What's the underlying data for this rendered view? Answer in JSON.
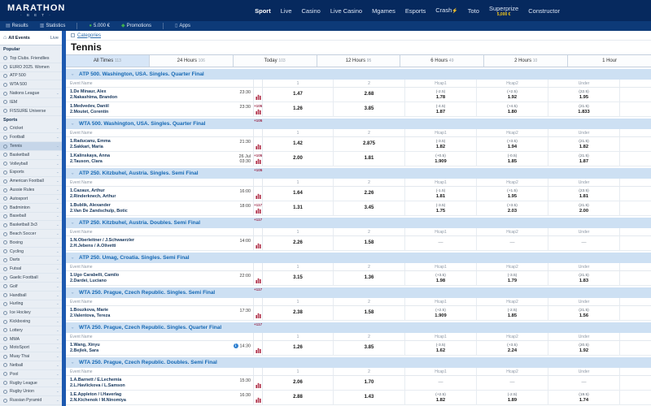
{
  "colors": {
    "navy": "#06295e",
    "navy2": "#0d3a78",
    "gold": "#f0c419",
    "divider": "#1d59b0",
    "section_header_bg": "#cde0f3",
    "section_header_text": "#1568b4",
    "markets_count": "#9c2f4e",
    "info_icon": "#2f80d0",
    "chart_icon": "#b03048"
  },
  "header": {
    "logo": {
      "line1": "MARATHON",
      "line2": "· B E T ·"
    },
    "nav": [
      {
        "label": "Sport",
        "active": true
      },
      {
        "label": "Live"
      },
      {
        "label": "Casino"
      },
      {
        "label": "Live Casino"
      },
      {
        "label": "Mgames"
      },
      {
        "label": "Esports"
      },
      {
        "label": "Crash",
        "flash": true
      },
      {
        "label": "Toto"
      },
      {
        "label": "Superprize",
        "sub": "5,000 €"
      },
      {
        "label": "Constructor"
      }
    ]
  },
  "subheader": {
    "items": [
      {
        "label": "Results",
        "icon": "results-icon",
        "glyph": "▤",
        "green": false,
        "sep_after": false
      },
      {
        "label": "Statistics",
        "icon": "statistics-icon",
        "glyph": "▥",
        "green": false,
        "sep_after": true
      },
      {
        "label": "5.000 €",
        "icon": "balance-icon",
        "glyph": "●",
        "green": true,
        "sep_after": false
      },
      {
        "label": "Promotions",
        "icon": "promotions-gift-icon",
        "glyph": "◆",
        "green": true,
        "sep_after": true
      },
      {
        "label": "Apps",
        "icon": "apps-phone-icon",
        "glyph": "▯",
        "green": false,
        "sep_after": false
      }
    ]
  },
  "sidebar": {
    "tabs": {
      "all_events": "All Events",
      "live": "Live"
    },
    "popular_title": "Popular",
    "popular": [
      {
        "label": "Top Clubs. Friendlies",
        "chevron": false
      },
      {
        "label": "EURO 2025. Women",
        "chevron": false
      },
      {
        "label": "ATP 500",
        "chevron": false
      },
      {
        "label": "WTA 500",
        "chevron": false
      },
      {
        "label": "Nations League",
        "chevron": true
      },
      {
        "label": "IEM",
        "chevron": false
      },
      {
        "label": "FISSURE Universe",
        "chevron": false
      }
    ],
    "sports_title": "Sports",
    "sports": [
      "Cricket",
      "Football",
      "Tennis",
      "Basketball",
      "Volleyball",
      "Esports",
      "American Football",
      "Aussie Rules",
      "Autosport",
      "Badminton",
      "Baseball",
      "Basketball 3x3",
      "Beach Soccer",
      "Boxing",
      "Cycling",
      "Darts",
      "Futsal",
      "Gaelic Football",
      "Golf",
      "Handball",
      "Hurling",
      "Ice Hockey",
      "Kickboxing",
      "Lottery",
      "MMA",
      "MotoSport",
      "Muay Thai",
      "Netball",
      "Pool",
      "Rugby League",
      "Rugby Union",
      "Russian Pyramid"
    ],
    "selected_sport": "Tennis"
  },
  "main": {
    "categories_label": "Categories",
    "title": "Tennis",
    "time_tabs": [
      {
        "label": "All Times",
        "count": "113",
        "active": true
      },
      {
        "label": "24 Hours",
        "count": "106",
        "active": false
      },
      {
        "label": "Today",
        "count": "103",
        "active": false
      },
      {
        "label": "12 Hours",
        "count": "95",
        "active": false
      },
      {
        "label": "6 Hours",
        "count": "49",
        "active": false
      },
      {
        "label": "2 Hours",
        "count": "10",
        "active": false
      },
      {
        "label": "1 Hour",
        "count": "",
        "active": false
      }
    ],
    "columns": {
      "event": "Event Name",
      "c1": "1",
      "c2": "2",
      "h1": "Hcap1",
      "h2": "Hcap2",
      "under": "Under"
    },
    "sections": [
      {
        "title": "ATP 500. Washington, USA. Singles. Quarter Final",
        "rows": [
          {
            "p1": "1.De Minaur, Alex",
            "p2": "2.Nakashima, Brandon",
            "date": "",
            "time": "23:30",
            "info": false,
            "markets": "+105",
            "o1": "1.47",
            "o2": "2.68",
            "h1p": "(-2.5)",
            "h1": "1.78",
            "h2p": "(+2.5)",
            "h2": "1.92",
            "up": "(22.5)",
            "u": "1.95"
          },
          {
            "p1": "1.Medvedev, Daniil",
            "p2": "2.Moutet, Corentin",
            "date": "",
            "time": "23:30",
            "info": false,
            "markets": "+105",
            "o1": "1.26",
            "o2": "3.85",
            "h1p": "(-4.5)",
            "h1": "1.87",
            "h2p": "(+4.5)",
            "h2": "1.80",
            "up": "(21.5)",
            "u": "1.833"
          }
        ]
      },
      {
        "title": "WTA 500. Washington, USA. Singles. Quarter Final",
        "rows": [
          {
            "p1": "1.Raducanu, Emma",
            "p2": "2.Sakkari, Maria",
            "date": "",
            "time": "21:30",
            "info": false,
            "markets": "+105",
            "o1": "1.42",
            "o2": "2.875",
            "h1p": "(-3.5)",
            "h1": "1.82",
            "h2p": "(+3.5)",
            "h2": "1.94",
            "up": "(21.5)",
            "u": "1.82"
          },
          {
            "p1": "1.Kalinskaya, Anna",
            "p2": "2.Tauson, Clara",
            "date": "26 Jul",
            "time": "03:30",
            "info": false,
            "markets": "+105",
            "o1": "2.00",
            "o2": "1.81",
            "h1p": "(+0.5)",
            "h1": "1.909",
            "h2p": "(-0.5)",
            "h2": "1.85",
            "up": "(21.5)",
            "u": "1.87"
          }
        ]
      },
      {
        "title": "ATP 250. Kitzbuhel, Austria. Singles. Semi Final",
        "rows": [
          {
            "p1": "1.Cazaux, Arthur",
            "p2": "2.Rinderknech, Arthur",
            "date": "",
            "time": "16:00",
            "info": false,
            "markets": "+117",
            "o1": "1.64",
            "o2": "2.26",
            "h1p": "(-1.5)",
            "h1": "1.81",
            "h2p": "(+1.5)",
            "h2": "1.95",
            "up": "(23.5)",
            "u": "1.81"
          },
          {
            "p1": "1.Bublik, Alexander",
            "p2": "2.Van De Zandschulp, Botic",
            "date": "",
            "time": "18:00",
            "info": false,
            "markets": "+117",
            "o1": "1.31",
            "o2": "3.45",
            "h1p": "(-3.5)",
            "h1": "1.75",
            "h2p": "(+3.5)",
            "h2": "2.03",
            "up": "(21.5)",
            "u": "2.00"
          }
        ]
      },
      {
        "title": "ATP 250. Kitzbuhel, Austria. Doubles. Semi Final",
        "rows": [
          {
            "p1": "1.N.Oberleitner / J.Schwaerzler",
            "p2": "2.H.Jebens / A.Olivetti",
            "date": "",
            "time": "14:00",
            "info": false,
            "markets": "",
            "o1": "2.26",
            "o2": "1.58",
            "h1p": "",
            "h1": "—",
            "h2p": "",
            "h2": "—",
            "up": "",
            "u": "—"
          }
        ]
      },
      {
        "title": "ATP 250. Umag, Croatia. Singles. Semi Final",
        "rows": [
          {
            "p1": "1.Ugo Carabelli, Camilo",
            "p2": "2.Dardei, Luciano",
            "date": "",
            "time": "22:00",
            "info": false,
            "markets": "+117",
            "o1": "3.15",
            "o2": "1.36",
            "h1p": "(+3.5)",
            "h1": "1.98",
            "h2p": "(-3.5)",
            "h2": "1.79",
            "up": "(21.5)",
            "u": "1.83"
          }
        ]
      },
      {
        "title": "WTA 250. Prague, Czech Republic. Singles. Semi Final",
        "rows": [
          {
            "p1": "1.Bouzkova, Marie",
            "p2": "2.Valentova, Tereza",
            "date": "",
            "time": "17:30",
            "info": false,
            "markets": "+117",
            "o1": "2.38",
            "o2": "1.58",
            "h1p": "(+2.5)",
            "h1": "1.909",
            "h2p": "(-2.5)",
            "h2": "1.85",
            "up": "(21.5)",
            "u": "1.56"
          }
        ]
      },
      {
        "title": "WTA 250. Prague, Czech Republic. Singles. Quarter Final",
        "rows": [
          {
            "p1": "1.Wang, Xinyu",
            "p2": "2.Bejlek, Sara",
            "date": "",
            "time": "14:30",
            "info": true,
            "markets": "",
            "o1": "1.26",
            "o2": "3.85",
            "h1p": "(-3.5)",
            "h1": "1.62",
            "h2p": "(+3.5)",
            "h2": "2.24",
            "up": "(20.5)",
            "u": "1.92"
          }
        ]
      },
      {
        "title": "WTA 250. Prague, Czech Republic. Doubles. Semi Final",
        "rows": [
          {
            "p1": "1.A.Barnett / E.Lechemia",
            "p2": "2.L.Havlickova / L.Samson",
            "date": "",
            "time": "15:30",
            "info": false,
            "markets": "",
            "o1": "2.06",
            "o2": "1.70",
            "h1p": "",
            "h1": "—",
            "h2p": "",
            "h2": "—",
            "up": "",
            "u": "—"
          },
          {
            "p1": "1.E.Appleton / I.Haverlag",
            "p2": "2.N.Kichenok / M.Ninomiya",
            "date": "",
            "time": "16:30",
            "info": false,
            "markets": "+104",
            "o1": "2.88",
            "o2": "1.43",
            "h1p": "(+2.5)",
            "h1": "1.82",
            "h2p": "(-2.5)",
            "h2": "1.89",
            "up": "(19.5)",
            "u": "1.74"
          }
        ]
      }
    ]
  }
}
